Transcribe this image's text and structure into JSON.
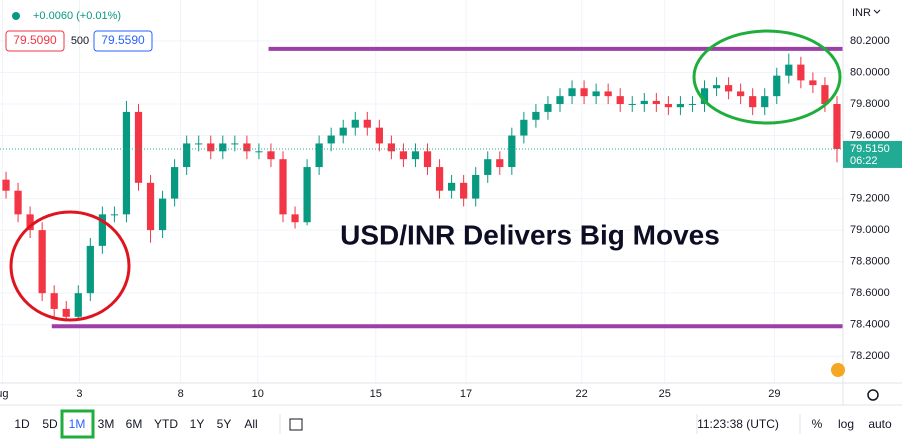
{
  "chart_data": {
    "type": "candlestick",
    "currency": "INR",
    "annotation": "USD/INR Delivers Big Moves",
    "open": [
      79.32,
      79.25,
      79.1,
      79.0,
      78.6,
      78.5,
      78.45,
      78.6,
      78.9,
      79.1,
      79.1,
      79.75,
      79.3,
      79.0,
      79.2,
      79.4,
      79.55,
      79.55,
      79.5,
      79.55,
      79.55,
      79.5,
      79.5,
      79.45,
      79.1,
      79.05,
      79.4,
      79.55,
      79.6,
      79.65,
      79.7,
      79.65,
      79.55,
      79.5,
      79.45,
      79.5,
      79.4,
      79.25,
      79.3,
      79.2,
      79.35,
      79.45,
      79.4,
      79.6,
      79.7,
      79.75,
      79.8,
      79.85,
      79.9,
      79.85,
      79.88,
      79.85,
      79.8,
      79.8,
      79.82,
      79.8,
      79.78,
      79.8,
      79.8,
      79.9,
      79.92,
      79.88,
      79.85,
      79.78,
      79.85,
      79.98,
      80.05,
      79.95,
      79.92,
      79.8
    ],
    "high": [
      79.37,
      79.3,
      79.15,
      79.05,
      78.65,
      78.55,
      78.65,
      78.95,
      79.15,
      79.15,
      79.82,
      79.8,
      79.35,
      79.25,
      79.45,
      79.6,
      79.6,
      79.6,
      79.6,
      79.6,
      79.6,
      79.55,
      79.55,
      79.5,
      79.15,
      79.45,
      79.6,
      79.65,
      79.7,
      79.75,
      79.75,
      79.7,
      79.6,
      79.55,
      79.55,
      79.55,
      79.45,
      79.35,
      79.35,
      79.4,
      79.5,
      79.5,
      79.65,
      79.75,
      79.8,
      79.85,
      79.9,
      79.95,
      79.95,
      79.93,
      79.93,
      79.9,
      79.85,
      79.87,
      79.87,
      79.85,
      79.85,
      79.85,
      79.95,
      79.97,
      79.97,
      79.93,
      79.9,
      79.9,
      80.03,
      80.12,
      80.1,
      80.0,
      79.97,
      79.85
    ],
    "low": [
      79.2,
      79.05,
      78.95,
      78.55,
      78.45,
      78.42,
      78.43,
      78.55,
      78.85,
      79.05,
      79.05,
      79.25,
      78.92,
      78.95,
      79.15,
      79.35,
      79.5,
      79.45,
      79.45,
      79.5,
      79.45,
      79.45,
      79.4,
      79.05,
      79.01,
      79.03,
      79.35,
      79.5,
      79.55,
      79.6,
      79.6,
      79.5,
      79.45,
      79.4,
      79.4,
      79.35,
      79.2,
      79.2,
      79.15,
      79.15,
      79.3,
      79.35,
      79.35,
      79.55,
      79.65,
      79.7,
      79.75,
      79.8,
      79.8,
      79.8,
      79.8,
      79.75,
      79.75,
      79.75,
      79.75,
      79.73,
      79.73,
      79.75,
      79.75,
      79.85,
      79.83,
      79.8,
      79.73,
      79.73,
      79.8,
      79.93,
      79.9,
      79.87,
      79.75,
      79.43
    ],
    "close": [
      79.25,
      79.1,
      79.0,
      78.6,
      78.5,
      78.45,
      78.6,
      78.9,
      79.1,
      79.1,
      79.75,
      79.3,
      79.0,
      79.2,
      79.4,
      79.55,
      79.55,
      79.5,
      79.55,
      79.55,
      79.5,
      79.5,
      79.45,
      79.1,
      79.05,
      79.4,
      79.55,
      79.6,
      79.65,
      79.7,
      79.65,
      79.55,
      79.5,
      79.45,
      79.5,
      79.4,
      79.25,
      79.3,
      79.2,
      79.35,
      79.45,
      79.4,
      79.6,
      79.7,
      79.75,
      79.8,
      79.85,
      79.9,
      79.85,
      79.88,
      79.85,
      79.8,
      79.8,
      79.82,
      79.8,
      79.78,
      79.8,
      79.8,
      79.9,
      79.92,
      79.88,
      79.85,
      79.78,
      79.85,
      79.98,
      80.05,
      79.95,
      79.92,
      79.8,
      79.515
    ],
    "up_color": "#089981",
    "down_color": "#f23645",
    "xlim": [
      -0.5,
      69.5
    ],
    "xticks": [
      {
        "value": -0.3,
        "label": "ug"
      },
      {
        "value": 6.1,
        "label": "3"
      },
      {
        "value": 14.5,
        "label": "8"
      },
      {
        "value": 20.9,
        "label": "10"
      },
      {
        "value": 30.7,
        "label": "15"
      },
      {
        "value": 38.2,
        "label": "17"
      },
      {
        "value": 47.8,
        "label": "22"
      },
      {
        "value": 54.7,
        "label": "25"
      },
      {
        "value": 63.8,
        "label": "29"
      }
    ],
    "ylim": [
      78.03,
      80.46
    ],
    "yticks": [
      {
        "value": 78.2,
        "label": "78.2000"
      },
      {
        "value": 78.4,
        "label": "78.4000"
      },
      {
        "value": 78.6,
        "label": "78.6000"
      },
      {
        "value": 78.8,
        "label": "78.8000"
      },
      {
        "value": 79.0,
        "label": "79.0000"
      },
      {
        "value": 79.2,
        "label": "79.2000"
      },
      {
        "value": 79.6,
        "label": "79.6000"
      },
      {
        "value": 79.8,
        "label": "79.8000"
      },
      {
        "value": 80.0,
        "label": "80.0000"
      },
      {
        "value": 80.2,
        "label": "80.2000"
      }
    ],
    "grid": true,
    "hlines": [
      {
        "value": 80.15,
        "x": 21.8,
        "color": "#9c3fa6"
      },
      {
        "value": 78.39,
        "x": 3.8,
        "color": "#9c3fa6"
      }
    ],
    "last_price": {
      "value": 79.515,
      "label": "79.5150"
    },
    "countdown": "06:22",
    "last_color": "#22ab94"
  },
  "header": {
    "change": "+0.0060 (+0.01%)",
    "bid": "79.5090",
    "size": "500",
    "ask": "79.5590"
  },
  "toolbar": {
    "ranges": [
      "1D",
      "5D",
      "1M",
      "3M",
      "6M",
      "YTD",
      "1Y",
      "5Y",
      "All"
    ],
    "time": "11:23:38 (UTC)",
    "options": [
      "%",
      "log",
      "auto"
    ]
  }
}
